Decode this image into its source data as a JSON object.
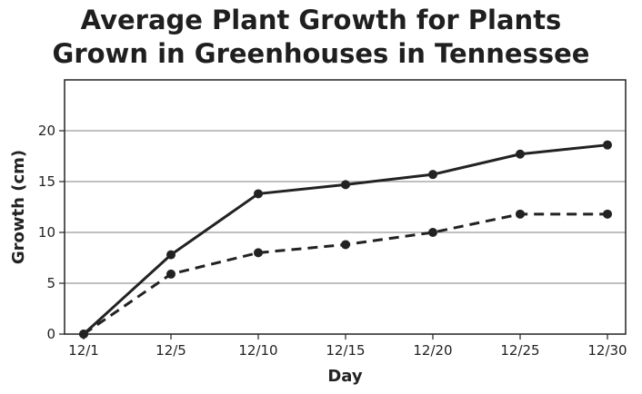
{
  "chart_data": {
    "type": "line",
    "title_line1": "Average Plant Growth for Plants",
    "title_line2": "Grown in Greenhouses in Tennessee",
    "xlabel": "Day",
    "ylabel": "Growth (cm)",
    "categories": [
      "12/1",
      "12/5",
      "12/10",
      "12/15",
      "12/20",
      "12/25",
      "12/30"
    ],
    "yticks": [
      0,
      5,
      10,
      15,
      20
    ],
    "ylim": [
      0,
      25
    ],
    "grid": "horizontal",
    "legend": "none",
    "series": [
      {
        "style": "solid",
        "color": "#222222",
        "values": [
          0,
          7.8,
          13.8,
          14.7,
          15.7,
          17.7,
          18.6
        ]
      },
      {
        "style": "dashed",
        "color": "#222222",
        "values": [
          0,
          5.9,
          8.0,
          8.8,
          10.0,
          11.8,
          11.8
        ]
      }
    ]
  }
}
